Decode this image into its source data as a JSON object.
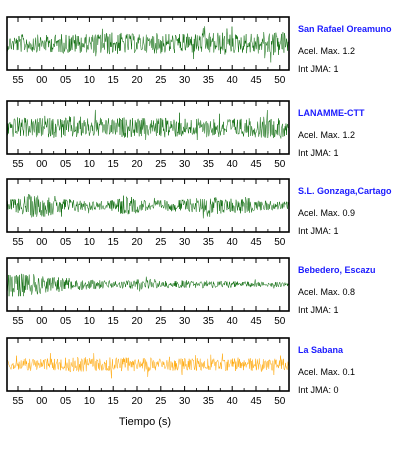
{
  "chart_data": {
    "type": "line",
    "xlabel": "Tiempo (s)",
    "tick_labels": [
      "55",
      "00",
      "05",
      "10",
      "15",
      "20",
      "25",
      "30",
      "35",
      "40",
      "45",
      "50"
    ],
    "grid": false,
    "panels": [
      {
        "station": "San Rafael Oreamuno",
        "accel_label": "Acel. Max. 1.2",
        "jma_label": "Int JMA: 1",
        "accel_max": 1.2,
        "jma": 1,
        "color": "#006400",
        "envelope": [
          0.6,
          0.7,
          0.75,
          0.65,
          0.7,
          0.8,
          0.75,
          0.7,
          0.85,
          0.9,
          0.8,
          0.75,
          0.7,
          0.85,
          0.8,
          0.75,
          0.8,
          0.85,
          0.9,
          0.8,
          0.75,
          0.85,
          0.9,
          1.0,
          0.95
        ]
      },
      {
        "station": "LANAMME-CTT",
        "accel_label": "Acel. Max. 1.2",
        "jma_label": "Int JMA: 1",
        "accel_max": 1.2,
        "jma": 1,
        "color": "#006400",
        "envelope": [
          0.75,
          0.8,
          0.7,
          0.75,
          0.8,
          0.85,
          0.9,
          0.8,
          0.75,
          0.7,
          0.8,
          0.75,
          0.7,
          0.75,
          0.8,
          0.75,
          0.7,
          0.75,
          0.8,
          0.75,
          0.7,
          0.75,
          0.85,
          0.8,
          0.75
        ]
      },
      {
        "station": "S.L. Gonzaga,Cartago",
        "accel_label": "Acel. Max. 0.9",
        "jma_label": "Int JMA: 1",
        "accel_max": 0.9,
        "jma": 1,
        "color": "#006400",
        "envelope": [
          0.45,
          0.6,
          0.95,
          0.9,
          0.75,
          0.6,
          0.45,
          0.4,
          0.35,
          0.45,
          0.8,
          0.6,
          0.4,
          0.4,
          0.45,
          0.5,
          0.55,
          0.7,
          0.65,
          0.55,
          0.7,
          0.55,
          0.4,
          0.35,
          0.3
        ]
      },
      {
        "station": "Bebedero, Escazu",
        "accel_label": "Acel. Max. 0.8",
        "jma_label": "Int JMA: 1",
        "accel_max": 0.8,
        "jma": 1,
        "color": "#006400",
        "envelope": [
          1.0,
          0.95,
          0.85,
          0.7,
          0.6,
          0.55,
          0.45,
          0.4,
          0.35,
          0.3,
          0.35,
          0.4,
          0.35,
          0.3,
          0.3,
          0.28,
          0.25,
          0.3,
          0.3,
          0.25,
          0.25,
          0.22,
          0.2,
          0.2,
          0.18
        ]
      },
      {
        "station": "La Sabana",
        "accel_label": "Acel. Max. 0.1",
        "jma_label": "Int JMA: 0",
        "accel_max": 0.1,
        "jma": 0,
        "color": "#ffa500",
        "envelope": [
          0.4,
          0.45,
          0.5,
          0.45,
          0.5,
          0.55,
          0.6,
          0.55,
          0.5,
          0.6,
          0.55,
          0.5,
          0.55,
          0.5,
          0.45,
          0.5,
          0.55,
          0.5,
          0.45,
          0.5,
          0.55,
          0.5,
          0.45,
          0.5,
          0.45
        ]
      }
    ]
  }
}
